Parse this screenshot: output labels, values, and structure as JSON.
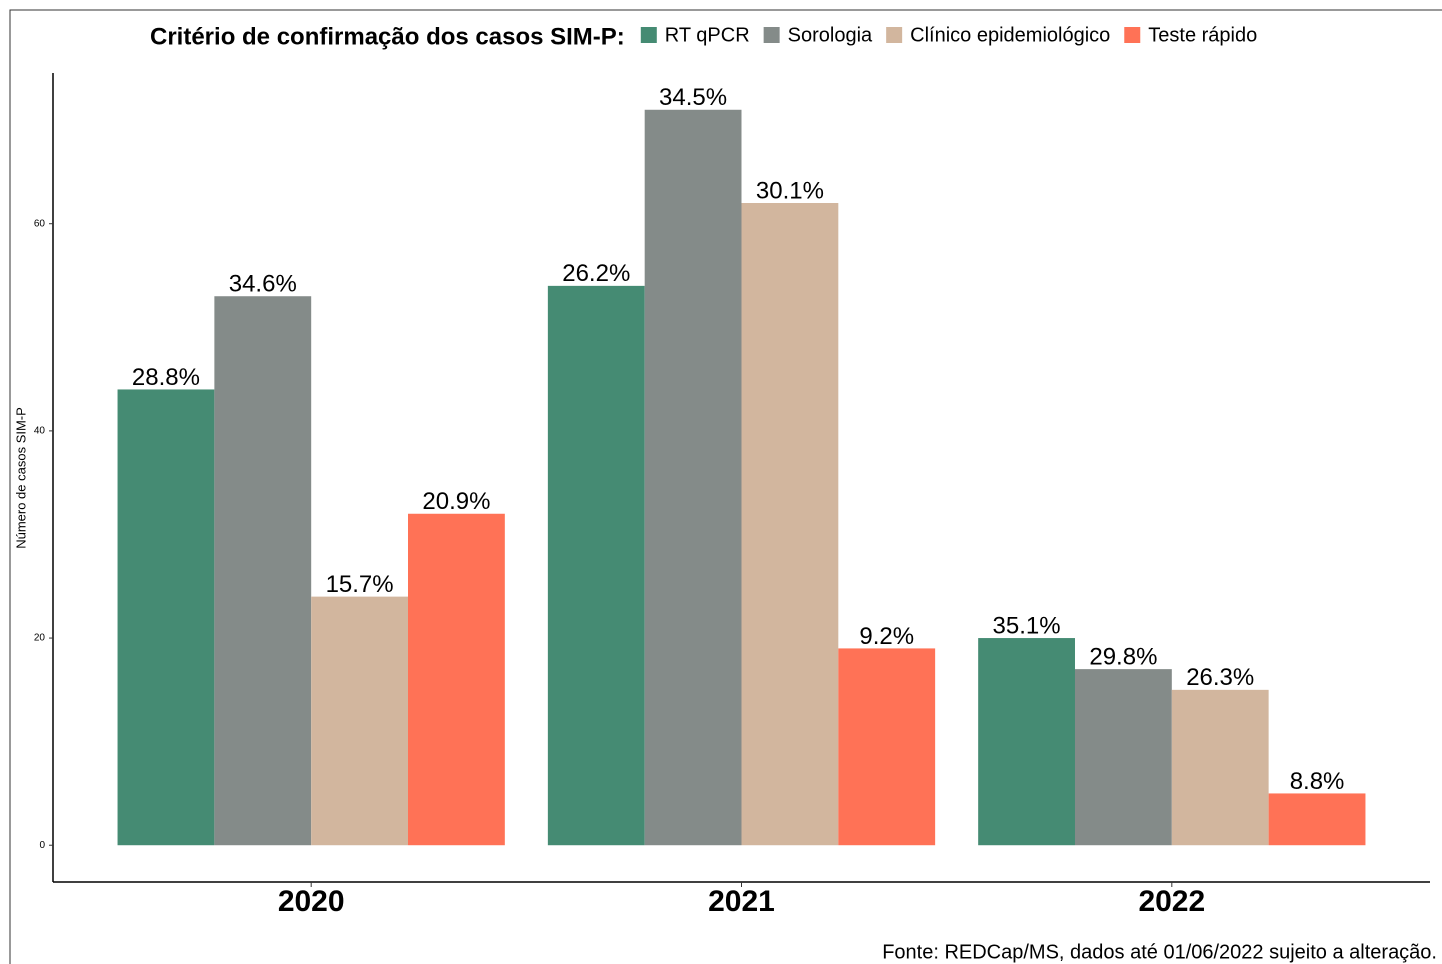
{
  "chart_data": {
    "type": "bar",
    "title": "Critério de confirmação dos casos SIM-P:",
    "y_label": "Número de casos SIM-P",
    "caption": "Fonte: REDCap/MS, dados até 01/06/2022 sujeito a alteração.",
    "categories": [
      "2020",
      "2021",
      "2022"
    ],
    "series": [
      {
        "name": "RT qPCR",
        "color": "#458b73",
        "values": [
          44,
          54,
          20
        ],
        "percent_labels": [
          "28.8%",
          "26.2%",
          "35.1%"
        ]
      },
      {
        "name": "Sorologia",
        "color": "#848b89",
        "values": [
          53,
          71,
          17
        ],
        "percent_labels": [
          "34.6%",
          "34.5%",
          "29.8%"
        ]
      },
      {
        "name": "Clínico epidemiológico",
        "color": "#d2b69e",
        "values": [
          24,
          62,
          15
        ],
        "percent_labels": [
          "15.7%",
          "30.1%",
          "26.3%"
        ]
      },
      {
        "name": "Teste rápido",
        "color": "#ff7256",
        "values": [
          32,
          19,
          5
        ],
        "percent_labels": [
          "20.9%",
          "9.2%",
          "8.8%"
        ]
      }
    ],
    "ylim": [
      -3.55,
      74.55
    ],
    "yticks": [
      0,
      20,
      40,
      60
    ],
    "grid": false,
    "legend": "top"
  }
}
